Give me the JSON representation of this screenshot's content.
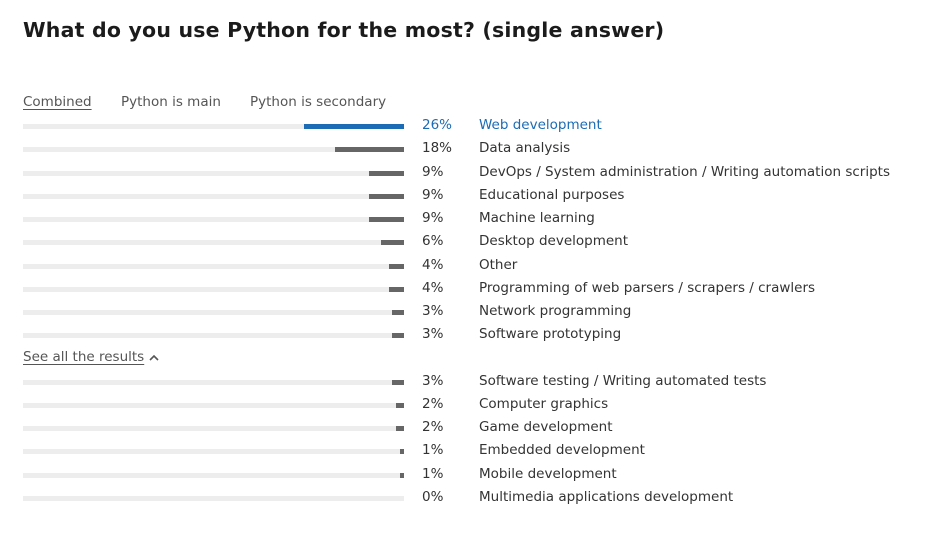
{
  "chart_data": {
    "type": "bar",
    "orientation": "horizontal",
    "title": "What do you use Python for the most? (single answer)",
    "xlabel": "",
    "ylabel": "",
    "xlim": [
      0,
      100
    ],
    "tabs": [
      "Combined",
      "Python is main",
      "Python is secondary"
    ],
    "active_tab": "Combined",
    "see_all_label": "See all the results",
    "highlight_color": "#1b6cb5",
    "bar_color": "#666666",
    "categories": [
      "Web development",
      "Data analysis",
      "DevOps / System administration / Writing automation scripts",
      "Educational purposes",
      "Machine learning",
      "Desktop development",
      "Other",
      "Programming of web parsers / scrapers / crawlers",
      "Network programming",
      "Software prototyping",
      "Software testing / Writing automated tests",
      "Computer graphics",
      "Game development",
      "Embedded development",
      "Mobile development",
      "Multimedia applications development"
    ],
    "values": [
      26,
      18,
      9,
      9,
      9,
      6,
      4,
      4,
      3,
      3,
      3,
      2,
      2,
      1,
      1,
      0
    ],
    "value_labels": [
      "26%",
      "18%",
      "9%",
      "9%",
      "9%",
      "6%",
      "4%",
      "4%",
      "3%",
      "3%",
      "3%",
      "2%",
      "2%",
      "1%",
      "1%",
      "0%"
    ],
    "highlighted_index": 0
  }
}
